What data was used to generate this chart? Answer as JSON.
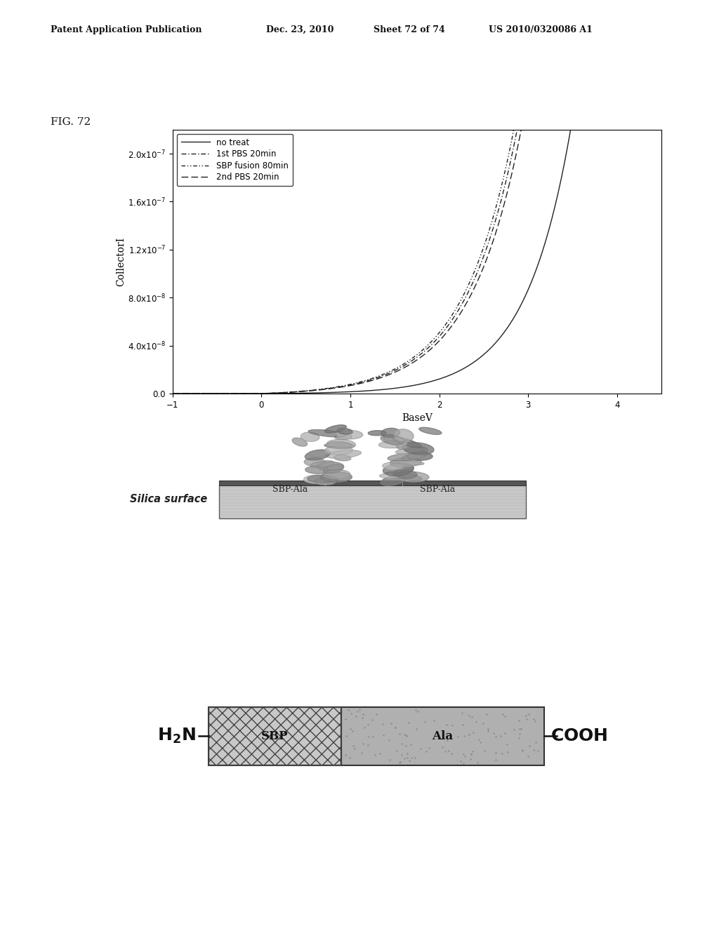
{
  "patent_header_left": "Patent Application Publication",
  "patent_header_date": "Dec. 23, 2010",
  "patent_header_sheet": "Sheet 72 of 74",
  "patent_header_num": "US 2010/0320086 A1",
  "fig_label": "FIG. 72",
  "graph": {
    "xlabel": "BaseV",
    "ylabel": "CollectorI",
    "xlim": [
      -1,
      4.5
    ],
    "ylim": [
      0,
      2.2e-07
    ],
    "yticks": [
      0.0,
      4e-08,
      8e-08,
      1.2e-07,
      1.6e-07,
      2e-07
    ],
    "xticks": [
      -1,
      0,
      1,
      2,
      3,
      4
    ]
  },
  "diagram1": {
    "silica_label": "Silica surface",
    "sbp_ala_left": "SBP-Ala",
    "sbp_ala_right": "SBP-Ala"
  },
  "diagram2": {
    "h2n": "H$_2$N",
    "cooh": "COOH",
    "sbp_label": "SBP",
    "ala_label": "Ala"
  },
  "bg_color": "#ffffff",
  "text_color": "#111111"
}
